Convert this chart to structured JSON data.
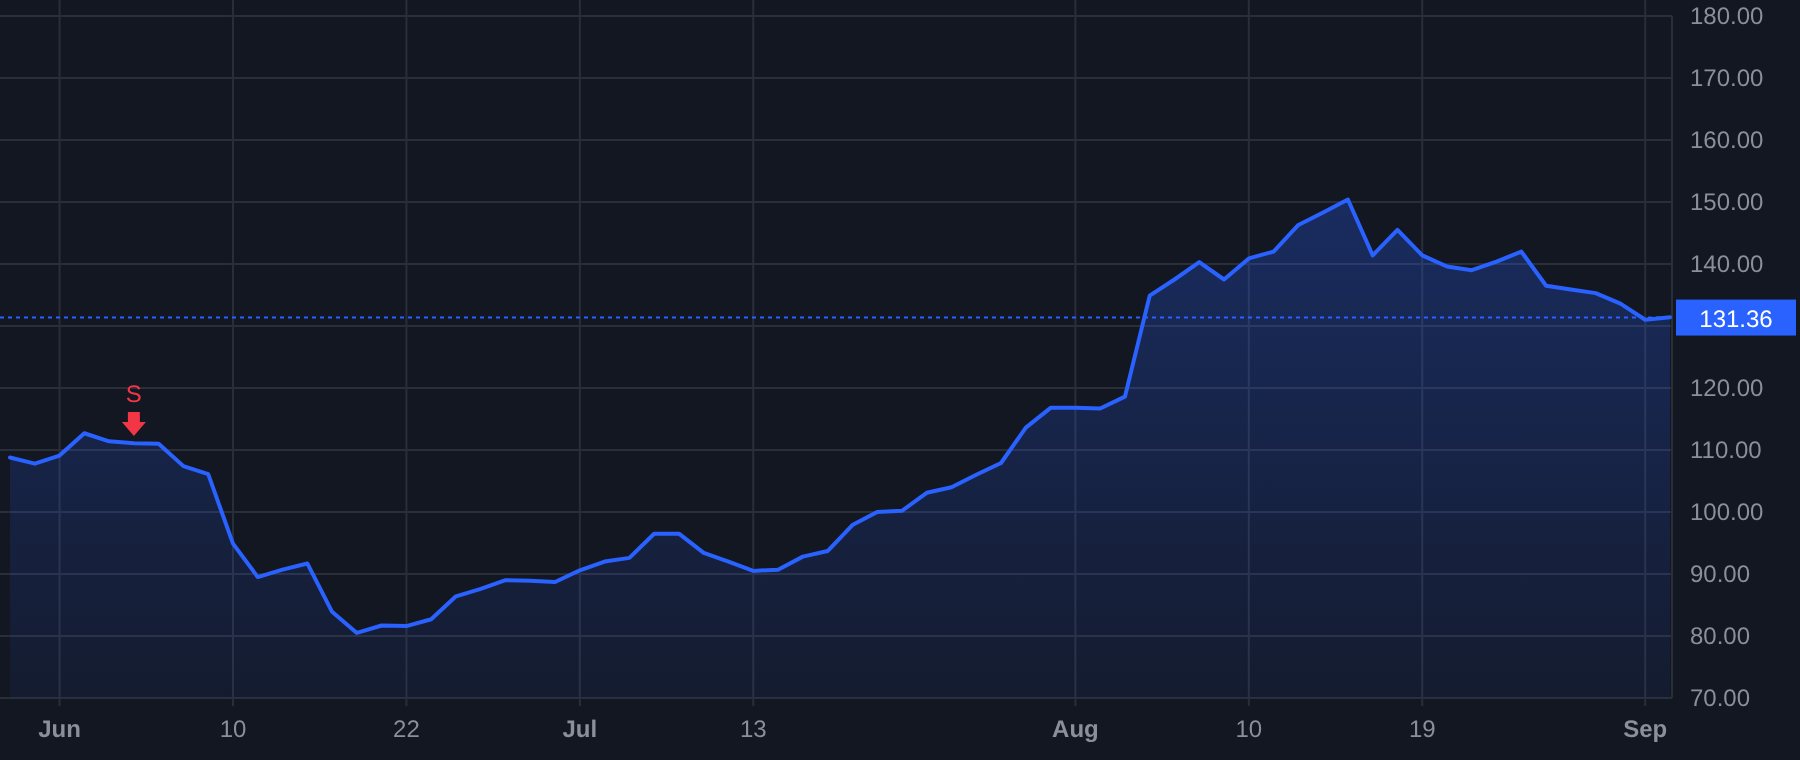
{
  "chart_data": {
    "type": "area",
    "categories": [
      null,
      null,
      "Jun",
      null,
      null,
      null,
      null,
      null,
      null,
      "10",
      null,
      null,
      null,
      null,
      null,
      null,
      "22",
      null,
      null,
      null,
      null,
      null,
      null,
      "Jul",
      null,
      null,
      null,
      null,
      null,
      null,
      "13",
      null,
      null,
      null,
      null,
      null,
      null,
      null,
      null,
      null,
      null,
      null,
      null,
      "Aug",
      null,
      null,
      null,
      null,
      null,
      null,
      "10",
      null,
      null,
      null,
      null,
      null,
      null,
      "19",
      null,
      null,
      null,
      null,
      null,
      null,
      null,
      null,
      "Sep",
      null
    ],
    "series": [
      {
        "color": "#2962ff",
        "values": [
          108.8,
          107.8,
          109.1,
          112.7,
          111.4,
          111.1,
          111.0,
          107.4,
          106.1,
          94.9,
          89.5,
          90.7,
          91.7,
          83.9,
          80.5,
          81.7,
          81.6,
          82.7,
          86.4,
          87.6,
          89.0,
          88.9,
          88.7,
          90.6,
          92.0,
          92.6,
          96.5,
          96.5,
          93.4,
          92.0,
          90.5,
          90.7,
          92.8,
          93.7,
          97.9,
          100.0,
          100.2,
          103.1,
          104.0,
          106.0,
          107.9,
          113.6,
          116.8,
          116.8,
          116.7,
          118.6,
          134.9,
          137.5,
          140.3,
          137.5,
          140.9,
          142.0,
          146.3,
          148.3,
          150.4,
          141.4,
          145.5,
          141.4,
          139.6,
          139.0,
          140.4,
          142.0,
          136.5,
          135.9,
          135.3,
          133.6,
          131.0,
          131.4
        ]
      },
      {
        "type": "scatter",
        "name": "S",
        "color": "#f23645",
        "values": [
          null,
          null,
          null,
          null,
          null,
          114.2,
          null,
          null,
          null,
          null,
          null,
          null,
          null,
          null,
          null,
          null,
          null,
          null,
          null,
          null,
          null,
          null,
          null,
          null,
          null,
          null,
          null,
          null,
          null,
          null,
          null,
          null,
          null,
          null,
          null,
          null,
          null,
          null,
          null,
          null,
          null,
          null,
          null,
          null,
          null,
          null,
          null,
          null,
          null,
          null,
          null,
          null,
          null,
          null,
          null,
          null,
          null,
          null,
          null,
          null,
          null,
          null,
          null,
          null,
          null,
          null,
          null,
          null
        ]
      }
    ],
    "ylim": [
      70,
      180
    ],
    "yticks": [
      {
        "value": 70,
        "label": "70.00"
      },
      {
        "value": 80,
        "label": "80.00"
      },
      {
        "value": 90,
        "label": "90.00"
      },
      {
        "value": 100,
        "label": "100.00"
      },
      {
        "value": 110,
        "label": "110.00"
      },
      {
        "value": 120,
        "label": "120.00"
      },
      {
        "value": 130,
        "label": null
      },
      {
        "value": 140,
        "label": "140.00"
      },
      {
        "value": 150,
        "label": "150.00"
      },
      {
        "value": 160,
        "label": "160.00"
      },
      {
        "value": 170,
        "label": "170.00"
      },
      {
        "value": 180,
        "label": "180.00"
      }
    ],
    "ref_lines": [
      {
        "axis": "y",
        "value": 131.36,
        "label": "131.36",
        "color": "#2962ff",
        "line_style": "dotted"
      }
    ],
    "grid": true
  }
}
